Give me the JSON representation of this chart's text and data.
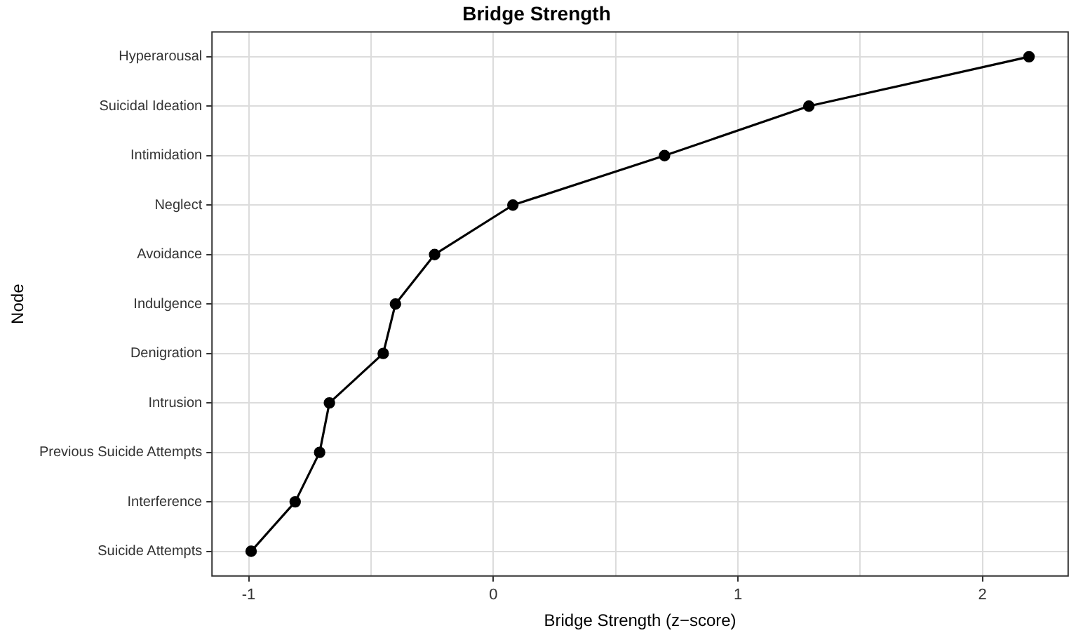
{
  "chart_data": {
    "type": "line",
    "title": "Bridge Strength",
    "xlabel": "Bridge Strength (z−score)",
    "ylabel": "Node",
    "orientation": "horizontal",
    "categories": [
      "Hyperarousal",
      "Suicidal Ideation",
      "Intimidation",
      "Neglect",
      "Avoidance",
      "Indulgence",
      "Denigration",
      "Intrusion",
      "Previous Suicide Attempts",
      "Interference",
      "Suicide Attempts"
    ],
    "series": [
      {
        "color": "#000000",
        "values": [
          2.19,
          1.29,
          0.7,
          0.08,
          -0.24,
          -0.4,
          -0.45,
          -0.67,
          -0.71,
          -0.81,
          -0.99
        ]
      }
    ],
    "xlim": [
      -1.15,
      2.35
    ],
    "xticks": [
      -1,
      {
        "value": -0.5,
        "label": null
      },
      0,
      {
        "value": 0.5,
        "label": null
      },
      1,
      {
        "value": 1.5,
        "label": null
      },
      2
    ],
    "grid": true,
    "marker": "circle",
    "line_style": "solid",
    "legend": false
  }
}
